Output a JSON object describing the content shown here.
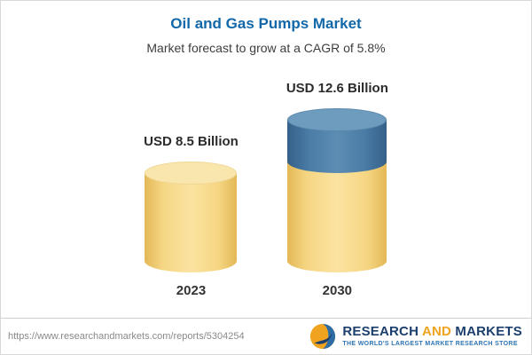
{
  "header": {
    "title": "Oil and Gas Pumps Market",
    "subtitle": "Market forecast to grow at a CAGR of 5.8%"
  },
  "chart_data": {
    "type": "bar",
    "title": "Oil and Gas Pumps Market",
    "subtitle": "Market forecast to grow at a CAGR of 5.8%",
    "categories": [
      "2023",
      "2030"
    ],
    "values": [
      8.5,
      12.6
    ],
    "value_labels": [
      "USD 8.5 Billion",
      "USD 12.6 Billion"
    ],
    "unit": "USD Billion",
    "cagr_percent": 5.8,
    "bar_colors": [
      "#F6D47C",
      "#4A7CA6"
    ],
    "growth_segment_color": "#4A7CA6",
    "legend": "none",
    "grid": "off"
  },
  "footer": {
    "url": "https://www.researchandmarkets.com/reports/5304254",
    "logo": {
      "word1": "RESEARCH",
      "word2": "AND",
      "word3": "MARKETS",
      "tagline": "THE WORLD'S LARGEST MARKET RESEARCH STORE"
    }
  },
  "colors": {
    "title_blue": "#1268A9",
    "bar_yellow": "#F6D47C",
    "bar_blue": "#4A7CA6",
    "logo_navy": "#1C3F6E",
    "logo_orange": "#F0A31E"
  }
}
